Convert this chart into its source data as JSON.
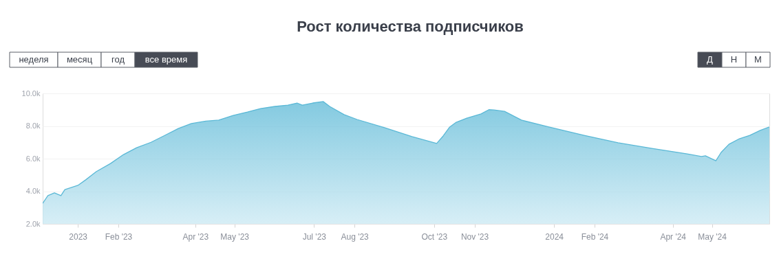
{
  "chart_data": {
    "type": "area",
    "title": "Рост количества подписчиков",
    "annotations": [
      "неделя",
      "месяц",
      "год",
      "все время",
      "Д",
      "Н",
      "М"
    ],
    "x": [
      "2022-12-05",
      "2022-12-09",
      "2022-12-14",
      "2022-12-19",
      "2022-12-22",
      "2023-01-01",
      "2023-01-07",
      "2023-01-15",
      "2023-01-26",
      "2023-02-05",
      "2023-02-15",
      "2023-02-26",
      "2023-03-08",
      "2023-03-19",
      "2023-03-29",
      "2023-04-09",
      "2023-04-19",
      "2023-04-30",
      "2023-05-11",
      "2023-05-21",
      "2023-06-01",
      "2023-06-11",
      "2023-06-18",
      "2023-06-22",
      "2023-06-30",
      "2023-07-08",
      "2023-07-13",
      "2023-07-24",
      "2023-08-03",
      "2023-08-24",
      "2023-09-14",
      "2023-10-03",
      "2023-10-08",
      "2023-10-13",
      "2023-10-18",
      "2023-10-26",
      "2023-11-06",
      "2023-11-12",
      "2023-11-16",
      "2023-11-24",
      "2023-12-07",
      "2023-12-28",
      "2024-01-24",
      "2024-02-19",
      "2024-03-16",
      "2024-04-12",
      "2024-04-23",
      "2024-04-26",
      "2024-05-04",
      "2024-05-08",
      "2024-05-14",
      "2024-05-22",
      "2024-05-30",
      "2024-06-07",
      "2024-06-14"
    ],
    "series": [
      {
        "color": "#5ab8d6",
        "values": [
          3260,
          3730,
          3900,
          3730,
          4100,
          4360,
          4700,
          5200,
          5700,
          6250,
          6670,
          7000,
          7400,
          7850,
          8150,
          8300,
          8360,
          8650,
          8860,
          9070,
          9200,
          9280,
          9410,
          9280,
          9410,
          9500,
          9200,
          8700,
          8400,
          7900,
          7350,
          6930,
          7390,
          7940,
          8230,
          8480,
          8740,
          9000,
          8980,
          8900,
          8360,
          7940,
          7430,
          6970,
          6630,
          6290,
          6130,
          6170,
          5870,
          6380,
          6880,
          7220,
          7430,
          7730,
          7940
        ]
      }
    ],
    "xlim": [
      "2022-12-05",
      "2024-06-14"
    ],
    "xticks": [
      {
        "value": "2023-01-01",
        "label": "2023"
      },
      {
        "value": "2023-02-01",
        "label": "Feb '23"
      },
      {
        "value": "2023-04-01",
        "label": "Apr '23"
      },
      {
        "value": "2023-05-01",
        "label": "May '23"
      },
      {
        "value": "2023-07-01",
        "label": "Jul '23"
      },
      {
        "value": "2023-08-01",
        "label": "Aug '23"
      },
      {
        "value": "2023-10-01",
        "label": "Oct '23"
      },
      {
        "value": "2023-11-01",
        "label": "Nov '23"
      },
      {
        "value": "2024-01-01",
        "label": "2024"
      },
      {
        "value": "2024-02-01",
        "label": "Feb '24"
      },
      {
        "value": "2024-04-01",
        "label": "Apr '24"
      },
      {
        "value": "2024-05-01",
        "label": "May '24"
      }
    ],
    "ylim": [
      2000,
      10000
    ],
    "yticks": [
      {
        "value": 2000,
        "label": "2.0k"
      },
      {
        "value": 4000,
        "label": "4.0k"
      },
      {
        "value": 6000,
        "label": "6.0k"
      },
      {
        "value": 8000,
        "label": "8.0k"
      },
      {
        "value": 10000,
        "label": "10.0k"
      }
    ],
    "grid": "y"
  }
}
